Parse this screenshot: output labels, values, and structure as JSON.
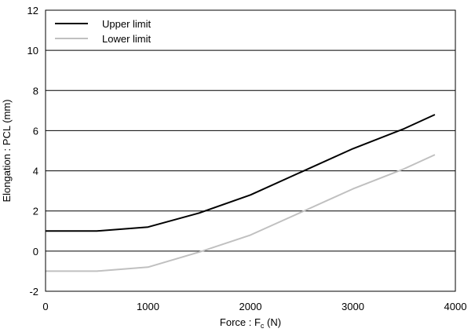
{
  "chart_data": {
    "type": "line",
    "xlabel": "Force : F",
    "xlabel_sub": "c",
    "xlabel_unit": " (N)",
    "ylabel": "Elongation : PCL (mm)",
    "xlim": [
      0,
      4000
    ],
    "ylim": [
      -2,
      12
    ],
    "xticks": [
      0,
      1000,
      2000,
      3000,
      4000
    ],
    "yticks": [
      -2,
      0,
      2,
      4,
      6,
      8,
      10,
      12
    ],
    "grid": "horizontal",
    "legend_position": "top-left",
    "series": [
      {
        "name": "Upper limit",
        "color": "#000000",
        "points": [
          [
            0,
            1.0
          ],
          [
            500,
            1.0
          ],
          [
            1000,
            1.2
          ],
          [
            1500,
            1.9
          ],
          [
            2000,
            2.8
          ],
          [
            2500,
            3.95
          ],
          [
            3000,
            5.1
          ],
          [
            3500,
            6.1
          ],
          [
            3800,
            6.8
          ]
        ]
      },
      {
        "name": "Lower limit",
        "color": "#c0c0c0",
        "points": [
          [
            0,
            -1.0
          ],
          [
            500,
            -1.0
          ],
          [
            1000,
            -0.8
          ],
          [
            1500,
            -0.05
          ],
          [
            2000,
            0.8
          ],
          [
            2500,
            1.95
          ],
          [
            3000,
            3.1
          ],
          [
            3500,
            4.1
          ],
          [
            3800,
            4.8
          ]
        ]
      }
    ]
  }
}
